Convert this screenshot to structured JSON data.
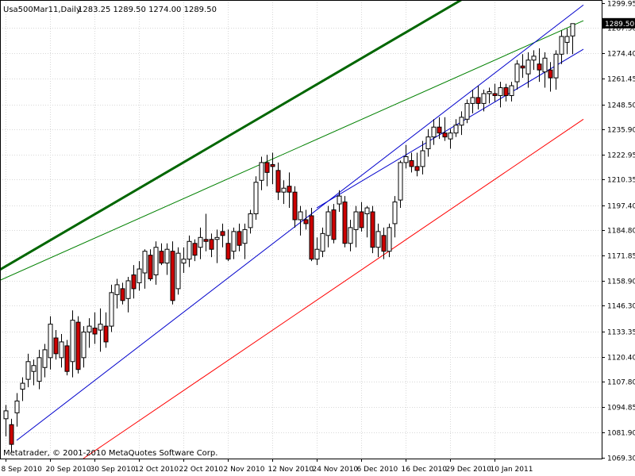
{
  "header": {
    "symbol_line": "Usa500Mar11,Daily",
    "ohlc_line": "1283.25  1289.50  1274.00  1289.50"
  },
  "footer": {
    "copyright": "Metatrader, © 2001-2010 MetaQuotes Software Corp."
  },
  "price_marker": "1289.50",
  "colors": {
    "up_candle_fill": "#ffffff",
    "down_candle_fill": "#cc0000",
    "candle_outline": "#000000",
    "upper_channel_thick": "#006600",
    "upper_channel_thin": "#008000",
    "trend_channel": "#0000cc",
    "lower_trend": "#ff0000",
    "grid": "#d8d8d8"
  },
  "chart_data": {
    "type": "candlestick",
    "title": "Usa500Mar11,Daily",
    "xlabel": "",
    "ylabel": "",
    "ylim": [
      1068.8,
      1301.5
    ],
    "yticks": [
      1299.95,
      1287.5,
      1274.4,
      1261.45,
      1248.5,
      1235.9,
      1222.95,
      1210.35,
      1197.4,
      1184.8,
      1171.85,
      1158.9,
      1146.3,
      1133.35,
      1120.4,
      1107.8,
      1094.85,
      1081.9,
      1069.3
    ],
    "x_tick_labels": [
      "8 Sep 2010",
      "20 Sep 2010",
      "30 Sep 2010",
      "12 Oct 2010",
      "22 Oct 2010",
      "2 Nov 2010",
      "12 Nov 2010",
      "24 Nov 2010",
      "6 Dec 2010",
      "16 Dec 2010",
      "29 Dec 2010",
      "10 Jan 2011"
    ],
    "x_tick_index": [
      0,
      8,
      16,
      24,
      32,
      40,
      48,
      56,
      64,
      72,
      80,
      88
    ],
    "candles": [
      [
        1089.0,
        1096.0,
        1080.0,
        1093.0
      ],
      [
        1086.0,
        1089.0,
        1072.0,
        1076.0
      ],
      [
        1092.0,
        1102.0,
        1085.0,
        1098.0
      ],
      [
        1104.0,
        1110.0,
        1098.0,
        1107.0
      ],
      [
        1109.0,
        1122.0,
        1105.0,
        1118.0
      ],
      [
        1113.0,
        1119.0,
        1106.0,
        1116.0
      ],
      [
        1108.0,
        1124.0,
        1104.0,
        1120.0
      ],
      [
        1115.0,
        1127.0,
        1110.0,
        1124.0
      ],
      [
        1120.0,
        1141.0,
        1114.0,
        1137.0
      ],
      [
        1130.0,
        1134.0,
        1119.0,
        1122.0
      ],
      [
        1120.0,
        1132.0,
        1115.0,
        1128.0
      ],
      [
        1126.0,
        1129.0,
        1111.0,
        1113.0
      ],
      [
        1118.0,
        1144.0,
        1110.0,
        1139.0
      ],
      [
        1138.0,
        1141.0,
        1112.0,
        1114.0
      ],
      [
        1120.0,
        1136.0,
        1115.0,
        1133.0
      ],
      [
        1133.0,
        1140.0,
        1125.0,
        1136.0
      ],
      [
        1135.0,
        1143.0,
        1127.0,
        1132.0
      ],
      [
        1134.0,
        1145.0,
        1123.0,
        1137.0
      ],
      [
        1136.0,
        1143.0,
        1125.0,
        1128.0
      ],
      [
        1136.0,
        1157.0,
        1133.0,
        1153.0
      ],
      [
        1152.0,
        1160.0,
        1145.0,
        1157.0
      ],
      [
        1155.0,
        1158.0,
        1147.0,
        1149.0
      ],
      [
        1150.0,
        1161.0,
        1143.0,
        1159.0
      ],
      [
        1162.0,
        1167.0,
        1150.0,
        1155.0
      ],
      [
        1158.0,
        1169.0,
        1154.0,
        1165.0
      ],
      [
        1163.0,
        1175.0,
        1155.0,
        1174.0
      ],
      [
        1172.0,
        1175.0,
        1159.0,
        1160.0
      ],
      [
        1162.0,
        1179.0,
        1157.0,
        1176.0
      ],
      [
        1174.0,
        1178.0,
        1167.0,
        1168.0
      ],
      [
        1168.0,
        1178.0,
        1162.0,
        1175.0
      ],
      [
        1174.0,
        1179.0,
        1147.0,
        1149.0
      ],
      [
        1155.0,
        1176.0,
        1152.0,
        1173.0
      ],
      [
        1168.0,
        1176.0,
        1163.0,
        1170.0
      ],
      [
        1170.0,
        1182.0,
        1166.0,
        1179.0
      ],
      [
        1178.0,
        1180.0,
        1169.0,
        1172.0
      ],
      [
        1176.0,
        1186.0,
        1170.0,
        1181.0
      ],
      [
        1180.0,
        1193.0,
        1174.0,
        1179.0
      ],
      [
        1180.0,
        1183.0,
        1171.0,
        1175.0
      ],
      [
        1180.0,
        1185.0,
        1168.0,
        1181.0
      ],
      [
        1184.0,
        1188.0,
        1176.0,
        1182.0
      ],
      [
        1178.0,
        1185.0,
        1169.0,
        1170.0
      ],
      [
        1174.0,
        1186.0,
        1170.0,
        1184.0
      ],
      [
        1184.0,
        1188.0,
        1174.0,
        1177.0
      ],
      [
        1178.0,
        1188.0,
        1170.0,
        1185.0
      ],
      [
        1186.0,
        1195.0,
        1183.0,
        1193.0
      ],
      [
        1193.0,
        1212.0,
        1190.0,
        1209.0
      ],
      [
        1210.0,
        1222.0,
        1205.0,
        1219.0
      ],
      [
        1219.0,
        1223.0,
        1207.0,
        1214.0
      ],
      [
        1218.0,
        1224.0,
        1208.0,
        1217.0
      ],
      [
        1215.0,
        1219.0,
        1200.0,
        1204.0
      ],
      [
        1204.0,
        1210.0,
        1198.0,
        1206.0
      ],
      [
        1207.0,
        1214.0,
        1196.0,
        1204.0
      ],
      [
        1204.0,
        1207.0,
        1186.0,
        1190.0
      ],
      [
        1190.0,
        1197.0,
        1182.0,
        1194.0
      ],
      [
        1190.0,
        1195.0,
        1185.0,
        1188.0
      ],
      [
        1192.0,
        1196.0,
        1169.0,
        1170.0
      ],
      [
        1170.0,
        1181.0,
        1167.0,
        1175.0
      ],
      [
        1174.0,
        1186.0,
        1171.0,
        1183.0
      ],
      [
        1182.0,
        1197.0,
        1176.0,
        1194.0
      ],
      [
        1195.0,
        1198.0,
        1178.0,
        1180.0
      ],
      [
        1198.0,
        1205.0,
        1194.0,
        1202.0
      ],
      [
        1199.0,
        1202.0,
        1176.0,
        1178.0
      ],
      [
        1178.0,
        1190.0,
        1174.0,
        1186.0
      ],
      [
        1185.0,
        1197.0,
        1176.0,
        1194.0
      ],
      [
        1194.0,
        1199.0,
        1184.0,
        1186.0
      ],
      [
        1193.0,
        1197.0,
        1181.0,
        1196.0
      ],
      [
        1194.0,
        1197.0,
        1173.0,
        1176.0
      ],
      [
        1176.0,
        1188.0,
        1171.0,
        1184.0
      ],
      [
        1182.0,
        1186.0,
        1170.0,
        1174.0
      ],
      [
        1174.0,
        1188.0,
        1171.0,
        1186.0
      ],
      [
        1188.0,
        1202.0,
        1181.0,
        1199.0
      ],
      [
        1200.0,
        1220.0,
        1196.0,
        1219.0
      ],
      [
        1219.0,
        1228.0,
        1216.0,
        1222.0
      ],
      [
        1220.0,
        1224.0,
        1214.0,
        1217.0
      ],
      [
        1217.0,
        1224.0,
        1212.0,
        1215.0
      ],
      [
        1217.0,
        1230.0,
        1213.0,
        1225.0
      ],
      [
        1226.0,
        1236.0,
        1222.0,
        1232.0
      ],
      [
        1232.0,
        1241.0,
        1228.0,
        1237.0
      ],
      [
        1237.0,
        1242.0,
        1231.0,
        1234.0
      ],
      [
        1234.0,
        1242.0,
        1230.0,
        1232.0
      ],
      [
        1231.0,
        1236.0,
        1226.0,
        1234.0
      ],
      [
        1234.0,
        1241.0,
        1232.0,
        1238.0
      ],
      [
        1238.0,
        1245.0,
        1233.0,
        1242.0
      ],
      [
        1241.0,
        1251.0,
        1239.0,
        1249.0
      ],
      [
        1249.0,
        1256.0,
        1244.0,
        1252.0
      ],
      [
        1252.0,
        1258.0,
        1246.0,
        1249.0
      ],
      [
        1249.0,
        1256.0,
        1245.0,
        1254.0
      ],
      [
        1254.0,
        1257.0,
        1249.0,
        1255.0
      ],
      [
        1254.0,
        1259.0,
        1250.0,
        1253.0
      ],
      [
        1253.0,
        1260.0,
        1247.0,
        1257.0
      ],
      [
        1257.0,
        1259.0,
        1250.0,
        1253.0
      ],
      [
        1253.0,
        1260.0,
        1250.0,
        1258.0
      ],
      [
        1260.0,
        1271.0,
        1256.0,
        1269.0
      ],
      [
        1268.0,
        1274.0,
        1262.0,
        1267.0
      ],
      [
        1264.0,
        1275.0,
        1257.0,
        1271.0
      ],
      [
        1271.0,
        1276.0,
        1266.0,
        1273.0
      ],
      [
        1269.0,
        1277.0,
        1260.0,
        1266.0
      ],
      [
        1265.0,
        1275.0,
        1257.0,
        1272.0
      ],
      [
        1266.0,
        1270.0,
        1255.0,
        1262.0
      ],
      [
        1262.0,
        1276.0,
        1256.0,
        1274.0
      ],
      [
        1274.0,
        1286.0,
        1269.0,
        1283.0
      ],
      [
        1280.0,
        1287.0,
        1274.0,
        1283.0
      ],
      [
        1283.25,
        1289.5,
        1274.0,
        1289.5
      ]
    ],
    "trendlines": [
      {
        "name": "",
        "color": "#006600",
        "width": 3,
        "x0": -2,
        "y0": 1163.0,
        "x1": 82,
        "y1": 1301.5
      },
      {
        "name": "",
        "color": "#008000",
        "width": 1,
        "x0": -2,
        "y0": 1158.0,
        "x1": 104,
        "y1": 1291.0
      },
      {
        "name": "",
        "color": "#0000cc",
        "width": 1,
        "x0": 2,
        "y0": 1078.0,
        "x1": 104,
        "y1": 1299.0
      },
      {
        "name": "",
        "color": "#0000cc",
        "width": 1,
        "x0": 56,
        "y0": 1196.0,
        "x1": 104,
        "y1": 1276.5
      },
      {
        "name": "",
        "color": "#ff0000",
        "width": 1,
        "x0": 14,
        "y0": 1068.8,
        "x1": 104,
        "y1": 1241.0
      }
    ],
    "grid": true,
    "legend": "none"
  }
}
